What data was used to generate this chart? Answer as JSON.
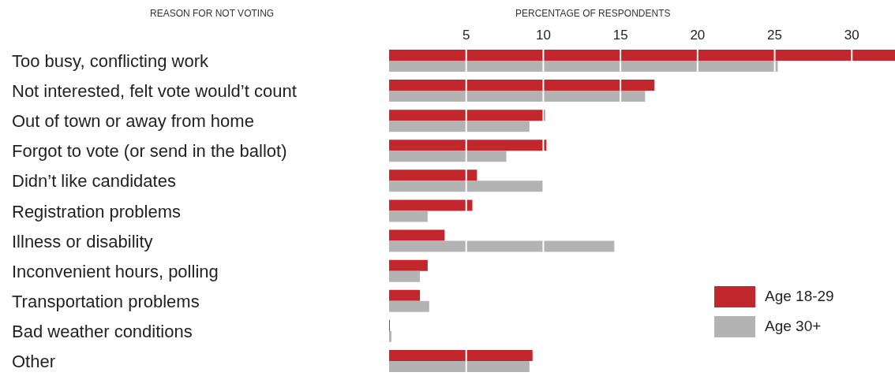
{
  "chart_data": {
    "type": "bar",
    "orientation": "horizontal",
    "xlabel": "PERCENTAGE OF RESPONDENTS",
    "ylabel": "REASON FOR NOT VOTING",
    "categories": [
      "Too busy, conflicting work",
      "Not interested, felt vote would’t count",
      "Out of town or away from home",
      "Forgot to vote (or send in the ballot)",
      "Didn’t like candidates",
      "Registration problems",
      "Illness or disability",
      "Inconvenient hours, polling",
      "Transportation problems",
      "Bad weather conditions",
      "Other"
    ],
    "series": [
      {
        "name": "Age 18-29",
        "color": "#c1272d",
        "values": [
          32.8,
          17.2,
          10.1,
          10.2,
          5.7,
          5.4,
          3.6,
          2.5,
          2.0,
          0.05,
          9.3
        ]
      },
      {
        "name": "Age 30+",
        "color": "#b3b3b3",
        "values": [
          25.2,
          16.6,
          9.1,
          7.6,
          10.0,
          2.5,
          14.6,
          2.0,
          2.6,
          0.15,
          9.1
        ]
      }
    ],
    "xlim": [
      0,
      32.8
    ],
    "xticks": [
      5,
      10,
      15,
      20,
      25,
      30
    ],
    "grid": "x",
    "legend": "bottom right"
  }
}
